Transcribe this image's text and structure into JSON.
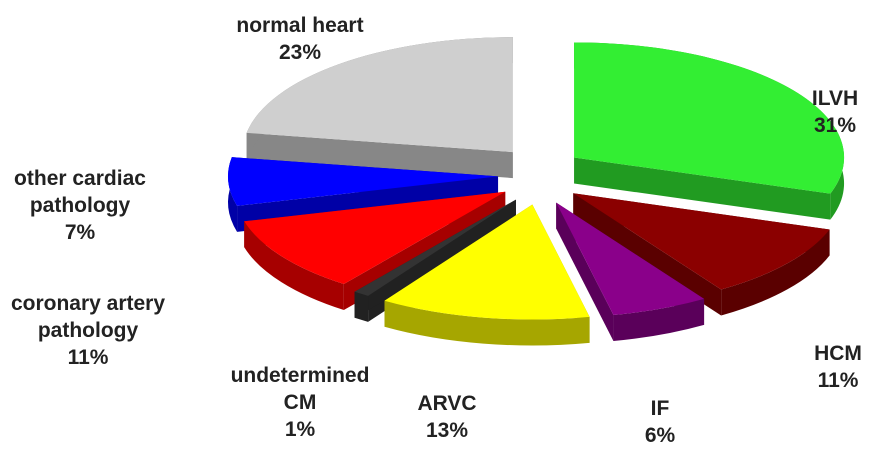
{
  "chart_data": {
    "type": "pie",
    "categories": [
      "ILVH",
      "HCM",
      "IF",
      "ARVC",
      "undetermined CM",
      "coronary artery pathology",
      "other cardiac pathology",
      "normal heart"
    ],
    "values": [
      31,
      11,
      6,
      13,
      1,
      11,
      7,
      23
    ],
    "value_labels": [
      "31%",
      "11%",
      "6%",
      "13%",
      "1%",
      "11%",
      "7%",
      "23%"
    ],
    "colors": [
      "#33ee33",
      "#8b0000",
      "#8a008a",
      "#ffff00",
      "#333333",
      "#ff0000",
      "#0000ff",
      "#cfcfcf"
    ]
  }
}
